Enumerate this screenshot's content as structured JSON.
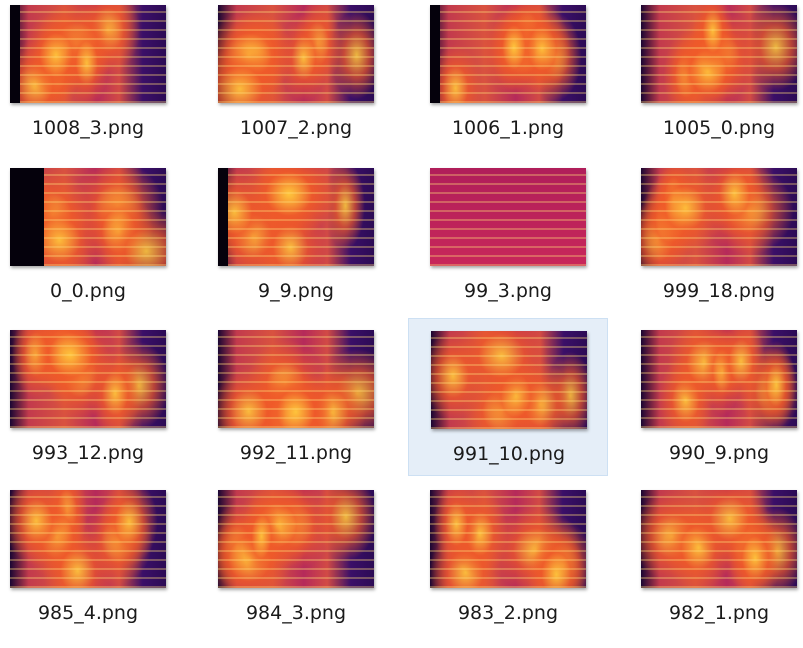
{
  "files": [
    {
      "name": "1008_3.png"
    },
    {
      "name": "1007_2.png"
    },
    {
      "name": "1006_1.png"
    },
    {
      "name": "1005_0.png"
    },
    {
      "name": "0_0.png"
    },
    {
      "name": "9_9.png"
    },
    {
      "name": "99_3.png"
    },
    {
      "name": "999_18.png"
    },
    {
      "name": "993_12.png"
    },
    {
      "name": "992_11.png"
    },
    {
      "name": "991_10.png"
    },
    {
      "name": "990_9.png"
    },
    {
      "name": "985_4.png"
    },
    {
      "name": "984_3.png"
    },
    {
      "name": "983_2.png"
    },
    {
      "name": "982_1.png"
    }
  ]
}
